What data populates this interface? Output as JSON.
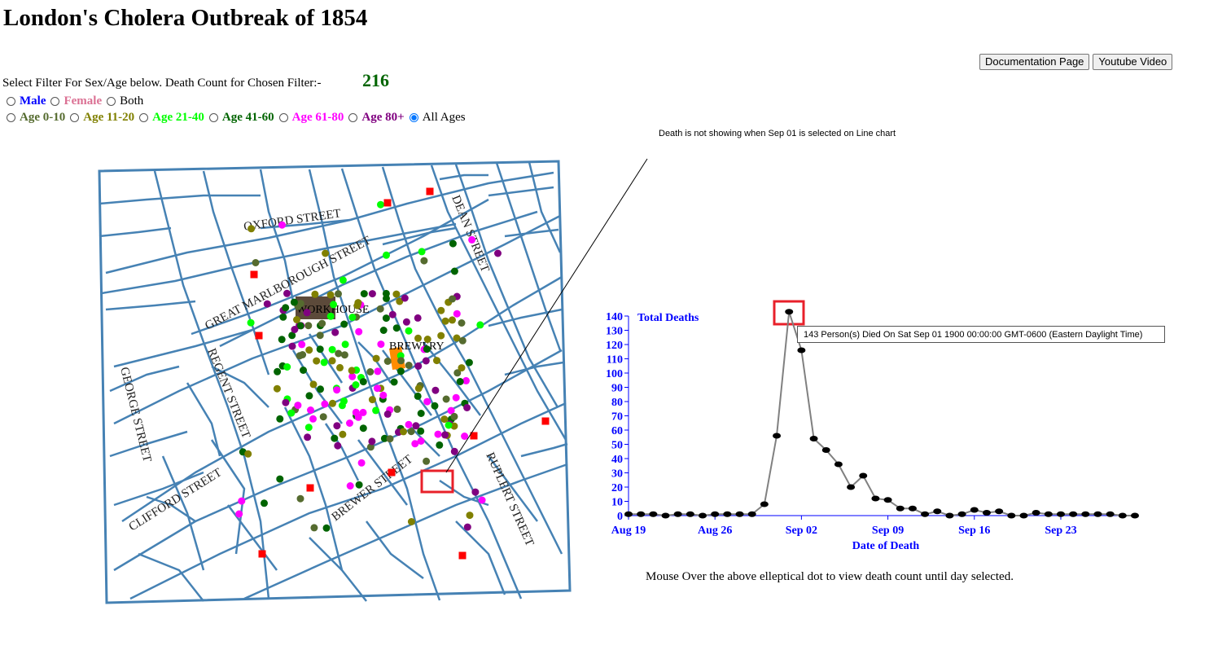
{
  "title": "London's Cholera Outbreak of 1854",
  "buttons": {
    "documentation": "Documentation Page",
    "youtube": "Youtube Video"
  },
  "filter": {
    "prompt": "Select Filter For Sex/Age below. Death Count for Chosen Filter:-",
    "count": "216",
    "sex_options": [
      {
        "label": "Male",
        "color": "#0000ff",
        "bold": true,
        "selected": false
      },
      {
        "label": "Female",
        "color": "#db7093",
        "bold": true,
        "selected": false
      },
      {
        "label": "Both",
        "color": "#000000",
        "bold": false,
        "selected": false
      }
    ],
    "age_options": [
      {
        "label": "Age 0-10",
        "color": "#556b2f",
        "bold": true,
        "selected": false
      },
      {
        "label": "Age 11-20",
        "color": "#808000",
        "bold": true,
        "selected": false
      },
      {
        "label": "Age 21-40",
        "color": "#00ff00",
        "bold": true,
        "selected": false
      },
      {
        "label": "Age 41-60",
        "color": "#006400",
        "bold": true,
        "selected": false
      },
      {
        "label": "Age 61-80",
        "color": "#ff00ff",
        "bold": true,
        "selected": false
      },
      {
        "label": "Age 80+",
        "color": "#800080",
        "bold": true,
        "selected": false
      },
      {
        "label": "All Ages",
        "color": "#000000",
        "bold": false,
        "selected": true
      }
    ]
  },
  "annotation_note": "Death is not showing when Sep 01 is selected on Line chart",
  "map": {
    "street_labels": [
      "OXFORD STREET",
      "GREAT MARLBOROUGH STREET",
      "DEAN STREET",
      "REGENT STREET",
      "GEORGE STREET",
      "CLIFFORD STREET",
      "BREWER STREET",
      "RUPLERT STREET"
    ],
    "building_labels": [
      "WORKHOUSE",
      "BREWERY"
    ],
    "colors": {
      "street": "#4682b4",
      "pump": "#ff0000",
      "workhouse": "#5c4a3a",
      "brewery": "#ff8c00"
    }
  },
  "chart_data": {
    "type": "line",
    "xlabel": "Date of Death",
    "ylabel": "Total Deaths",
    "x_tick_labels": [
      "Aug 19",
      "Aug 26",
      "Sep 02",
      "Sep 09",
      "Sep 16",
      "Sep 23"
    ],
    "y_ticks": [
      0,
      10,
      20,
      30,
      40,
      50,
      60,
      70,
      80,
      90,
      100,
      110,
      120,
      130,
      140
    ],
    "ylim": [
      0,
      140
    ],
    "x_start": "1854-08-19",
    "x": [
      "Aug 19",
      "Aug 20",
      "Aug 21",
      "Aug 22",
      "Aug 23",
      "Aug 24",
      "Aug 25",
      "Aug 26",
      "Aug 27",
      "Aug 28",
      "Aug 29",
      "Aug 30",
      "Aug 31",
      "Sep 01",
      "Sep 02",
      "Sep 03",
      "Sep 04",
      "Sep 05",
      "Sep 06",
      "Sep 07",
      "Sep 08",
      "Sep 09",
      "Sep 10",
      "Sep 11",
      "Sep 12",
      "Sep 13",
      "Sep 14",
      "Sep 15",
      "Sep 16",
      "Sep 17",
      "Sep 18",
      "Sep 19",
      "Sep 20",
      "Sep 21",
      "Sep 22",
      "Sep 23",
      "Sep 24",
      "Sep 25",
      "Sep 26",
      "Sep 27",
      "Sep 28",
      "Sep 29"
    ],
    "values": [
      1,
      1,
      1,
      0,
      1,
      1,
      0,
      1,
      1,
      1,
      1,
      8,
      56,
      143,
      116,
      54,
      46,
      36,
      20,
      28,
      12,
      11,
      5,
      5,
      1,
      3,
      0,
      1,
      4,
      2,
      3,
      0,
      0,
      2,
      1,
      1,
      1,
      1,
      1,
      1,
      0,
      0
    ],
    "color": "#808080",
    "axis_color": "#0000ff",
    "highlight_index": 13
  },
  "tooltip": "143 Person(s) Died On Sat Sep 01 1900 00:00:00 GMT-0600 (Eastern Daylight Time)",
  "caption": "Mouse Over the above elleptical dot to view death count until day selected."
}
